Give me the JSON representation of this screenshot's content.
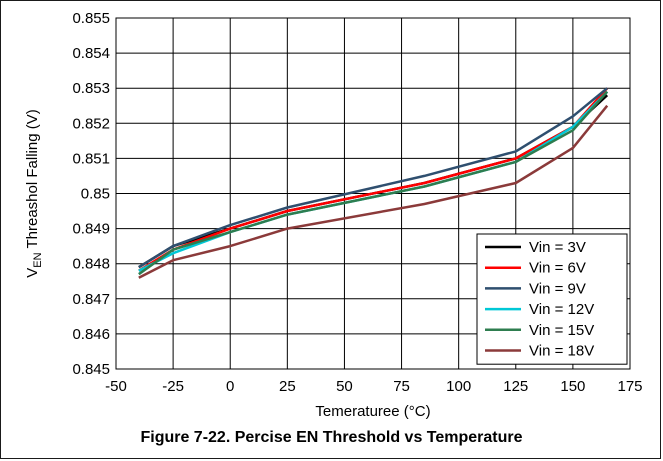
{
  "caption": "Figure 7-22. Percise EN Threshold vs Temperature",
  "chart_data": {
    "type": "line",
    "xlabel": "Temeraturee (°C)",
    "ylabel_parts": {
      "main_pre": "V",
      "sub": "EN",
      "main_post": " Threashol Falling (V)"
    },
    "xlim": [
      -50,
      175
    ],
    "ylim": [
      0.845,
      0.855
    ],
    "x_ticks": [
      -50,
      -25,
      0,
      25,
      50,
      75,
      100,
      125,
      150,
      175
    ],
    "x_tick_labels": [
      "-50",
      "-25",
      "0",
      "25",
      "50",
      "75",
      "100",
      "125",
      "150",
      "175"
    ],
    "y_ticks": [
      0.845,
      0.846,
      0.847,
      0.848,
      0.849,
      0.85,
      0.851,
      0.852,
      0.853,
      0.854,
      0.855
    ],
    "y_tick_labels": [
      "0.845",
      "0.846",
      "0.847",
      "0.848",
      "0.849",
      "0.85",
      "0.851",
      "0.852",
      "0.853",
      "0.854",
      "0.855"
    ],
    "grid": true,
    "legend_position": "bottom-right",
    "x": [
      -40,
      -25,
      0,
      25,
      85,
      125,
      150,
      165
    ],
    "series": [
      {
        "name": "Vin = 3V",
        "color": "#000000",
        "values": [
          0.8479,
          0.8485,
          0.849,
          0.8495,
          0.8503,
          0.851,
          0.8519,
          0.8528
        ]
      },
      {
        "name": "Vin = 6V",
        "color": "#ff0000",
        "values": [
          0.8478,
          0.8484,
          0.849,
          0.8495,
          0.8503,
          0.851,
          0.8519,
          0.853
        ]
      },
      {
        "name": "Vin = 9V",
        "color": "#2f4f6f",
        "values": [
          0.8479,
          0.8485,
          0.8491,
          0.8496,
          0.8505,
          0.8512,
          0.8522,
          0.853
        ]
      },
      {
        "name": "Vin = 12V",
        "color": "#00c8d6",
        "values": [
          0.8478,
          0.8483,
          0.8489,
          0.8494,
          0.8502,
          0.8509,
          0.8519,
          0.8529
        ]
      },
      {
        "name": "Vin = 15V",
        "color": "#2e7d4f",
        "values": [
          0.8477,
          0.8484,
          0.8489,
          0.8494,
          0.8502,
          0.8509,
          0.8518,
          0.8529
        ]
      },
      {
        "name": "Vin = 18V",
        "color": "#8b3a3a",
        "values": [
          0.8476,
          0.8481,
          0.8485,
          0.849,
          0.8497,
          0.8503,
          0.8513,
          0.8525
        ]
      }
    ]
  }
}
